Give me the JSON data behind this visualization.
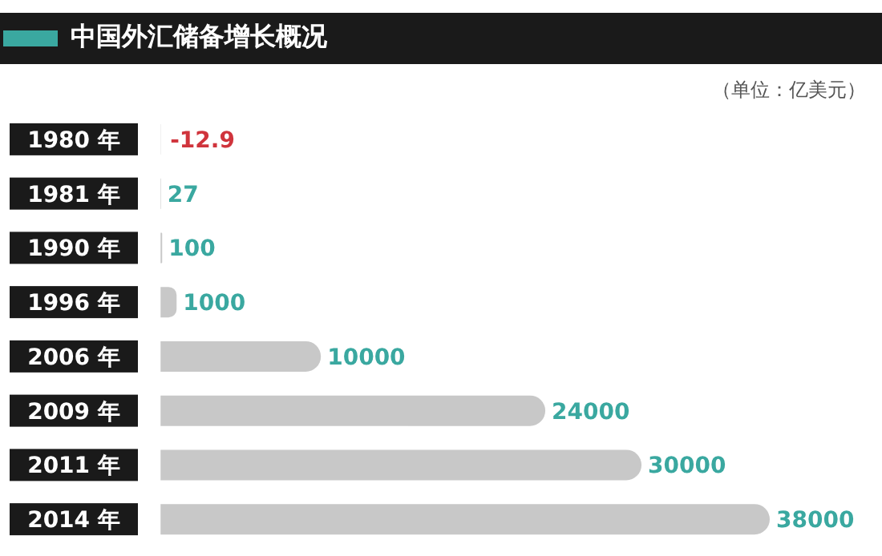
{
  "chart_data": {
    "type": "bar",
    "orientation": "horizontal",
    "title": "中国外汇储备增长概况",
    "annotations": [
      "（单位：亿美元）"
    ],
    "categories": [
      "1980 年",
      "1981 年",
      "1990 年",
      "1996 年",
      "2006 年",
      "2009 年",
      "2011 年",
      "2014 年"
    ],
    "values": [
      -12.9,
      27,
      100,
      1000,
      10000,
      24000,
      30000,
      38000
    ],
    "color": "#c8c8c8",
    "data_labels": true
  }
}
